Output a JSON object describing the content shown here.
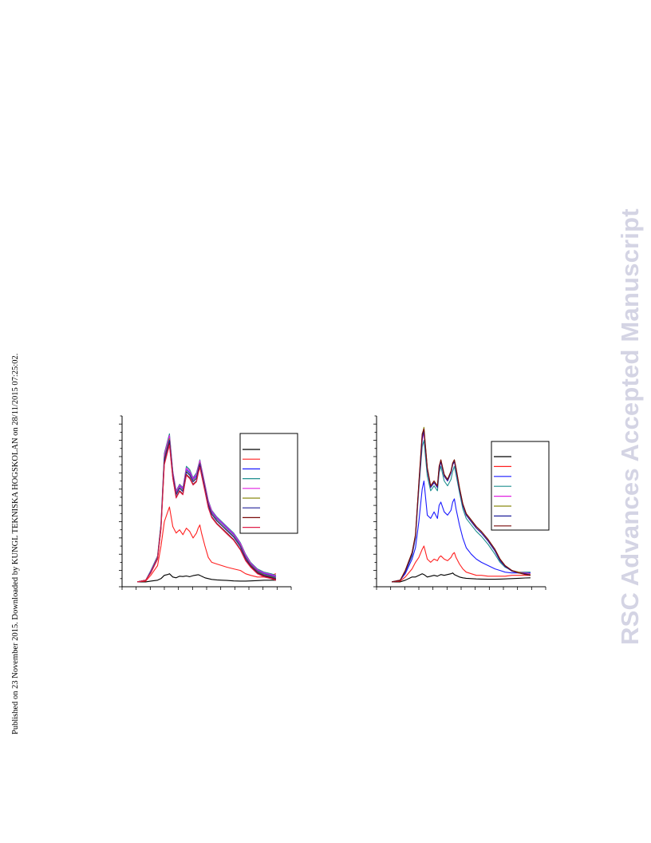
{
  "page": {
    "side_note": "Published on 23 November 2015. Downloaded by KUNGL TEKNISKA HOGSKOLAN on 28/11/2015 07:25:02.",
    "watermark": "RSC Advances Accepted Manuscript"
  },
  "colors": {
    "black": "#000000",
    "red": "#ff2020",
    "blue": "#1a1aff",
    "teal": "#1f8f8f",
    "magenta": "#e020e0",
    "olive": "#8a8a10",
    "navy": "#20209a",
    "darkred": "#7a0a0a",
    "crimson": "#e0204a"
  },
  "chart_data": [
    {
      "type": "line",
      "title": "",
      "xlabel": "",
      "ylabel": "",
      "xlim": [
        0,
        100
      ],
      "ylim": [
        0,
        105
      ],
      "x_ticks": 12,
      "y_ticks": 21,
      "legend_position": "top-right",
      "grid": false,
      "x": [
        9,
        14,
        17,
        21,
        23,
        25,
        27,
        28,
        30,
        32,
        34,
        36,
        37,
        38,
        40,
        42,
        44,
        45,
        46,
        47,
        49,
        51,
        53,
        56,
        59,
        62,
        66,
        70,
        73,
        76,
        80,
        84,
        88,
        91
      ],
      "series": [
        {
          "color": "#000000",
          "values": [
            3,
            3,
            3.5,
            4,
            5,
            7,
            7.5,
            8,
            6,
            5.5,
            6.5,
            6.3,
            6.5,
            6.6,
            6.2,
            6.8,
            7.2,
            7.4,
            7,
            6.5,
            5.5,
            5,
            4.5,
            4.2,
            4,
            3.9,
            3.6,
            3.5,
            3.5,
            3.6,
            3.8,
            4,
            4,
            4
          ]
        },
        {
          "color": "#ff2020",
          "values": [
            3,
            3.5,
            7,
            13,
            25,
            40,
            46,
            49,
            37,
            33,
            35,
            32,
            34,
            36,
            34,
            30,
            33,
            36,
            38,
            33,
            25,
            18,
            15,
            14,
            13,
            12,
            11,
            10,
            8,
            7,
            6,
            6,
            7,
            8
          ]
        },
        {
          "color": "#1a1aff",
          "values": [
            3,
            4,
            9,
            18,
            38,
            80,
            88,
            92,
            70,
            58,
            62,
            60,
            66,
            72,
            70,
            66,
            68,
            73,
            77,
            72,
            62,
            52,
            46,
            42,
            39,
            36,
            32,
            26,
            19,
            14,
            10,
            8,
            7,
            6
          ]
        },
        {
          "color": "#1f8f8f",
          "values": [
            3,
            4,
            10,
            19,
            39,
            82,
            90,
            94,
            71,
            59,
            63,
            61,
            67,
            74,
            72,
            67,
            70,
            74,
            78,
            73,
            63,
            53,
            47,
            43,
            40,
            37,
            33,
            27,
            20,
            15,
            11,
            9,
            8,
            7
          ]
        },
        {
          "color": "#e020e0",
          "values": [
            3,
            4,
            9.5,
            18.5,
            38,
            81,
            89,
            93,
            70.5,
            58.5,
            62.5,
            60.5,
            66.5,
            73,
            71,
            66.5,
            69,
            73.5,
            77.5,
            72.5,
            62.5,
            52.5,
            46.5,
            42.5,
            39.5,
            36.5,
            32.5,
            26.5,
            19.5,
            14.5,
            10.5,
            8.5,
            7.5,
            6.5
          ]
        },
        {
          "color": "#8a8a10",
          "values": [
            3,
            4,
            9,
            18,
            37,
            79,
            87,
            91,
            69,
            57,
            61,
            59,
            65,
            71,
            69,
            65,
            67,
            72,
            76,
            71,
            61,
            51,
            45,
            41,
            38,
            35,
            31,
            25,
            18,
            13.5,
            9.5,
            7.5,
            6.5,
            5.5
          ]
        },
        {
          "color": "#20209a",
          "values": [
            3,
            4,
            9,
            17.5,
            36.5,
            78,
            86,
            90,
            68.5,
            56.5,
            60.5,
            58.5,
            64.5,
            70.5,
            68.5,
            64.5,
            66.5,
            71.5,
            75.5,
            70.5,
            60.5,
            50.5,
            44.5,
            40.5,
            37.5,
            34.5,
            30.5,
            24.5,
            17.5,
            13,
            9,
            7,
            6,
            5
          ]
        },
        {
          "color": "#7a0a0a",
          "values": [
            3,
            4,
            8.5,
            17,
            36,
            76,
            84,
            88,
            67,
            55,
            59,
            57,
            63,
            69,
            67,
            63,
            65,
            70,
            74,
            69,
            59,
            49,
            43,
            39,
            36,
            33,
            29,
            23,
            16.5,
            12.5,
            8.5,
            6.5,
            5.5,
            4.5
          ]
        },
        {
          "color": "#e0204a",
          "values": [
            3,
            4,
            8.5,
            17,
            35.5,
            75,
            83,
            87,
            66.5,
            54.5,
            58.5,
            56.5,
            62.5,
            68.5,
            66.5,
            62.5,
            64.5,
            69.5,
            73.5,
            68.5,
            58.5,
            48.5,
            42.5,
            38.5,
            35.5,
            32.5,
            28.5,
            22.5,
            16,
            12,
            8,
            6,
            5,
            4
          ]
        }
      ]
    },
    {
      "type": "line",
      "title": "",
      "xlabel": "",
      "ylabel": "",
      "xlim": [
        0,
        100
      ],
      "ylim": [
        0,
        105
      ],
      "x_ticks": 12,
      "y_ticks": 21,
      "legend_position": "top-right",
      "grid": false,
      "x": [
        9,
        14,
        17,
        21,
        23,
        25,
        27,
        28,
        30,
        32,
        34,
        36,
        37,
        38,
        40,
        42,
        44,
        45,
        46,
        47,
        49,
        51,
        53,
        56,
        59,
        62,
        66,
        70,
        73,
        76,
        80,
        84,
        88,
        91
      ],
      "series": [
        {
          "color": "#000000",
          "values": [
            3,
            3,
            4,
            6,
            6,
            7,
            8,
            7.5,
            6,
            6.5,
            7,
            6.5,
            7,
            7.5,
            7,
            7.5,
            8,
            8.5,
            7.5,
            7,
            6,
            5.5,
            5.2,
            5,
            4.8,
            4.7,
            4.6,
            4.6,
            4.7,
            4.8,
            5,
            5.2,
            5.4,
            5.5
          ]
        },
        {
          "color": "#ff2020",
          "values": [
            3,
            3.5,
            6,
            11,
            15,
            18,
            23,
            25,
            17,
            15,
            17,
            16,
            18,
            19,
            17,
            16,
            18,
            20,
            21,
            18,
            14,
            11,
            9,
            8,
            7,
            7,
            6.5,
            6.5,
            6.5,
            6.5,
            7,
            7,
            7,
            7
          ]
        },
        {
          "color": "#1a1aff",
          "values": [
            3,
            4,
            8,
            17,
            24,
            40,
            60,
            65,
            44,
            42,
            46,
            42,
            50,
            52,
            46,
            44,
            47,
            52,
            54,
            48,
            38,
            30,
            24,
            20,
            17,
            15,
            13,
            11,
            10,
            9,
            8.5,
            8.5,
            8.5,
            8.5
          ]
        },
        {
          "color": "#1f8f8f",
          "values": [
            3,
            4,
            9,
            19,
            30,
            60,
            86,
            90,
            68,
            59,
            62,
            59,
            70,
            74,
            65,
            62,
            66,
            71,
            74,
            69,
            58,
            48,
            42,
            38,
            34,
            31,
            26,
            20,
            15,
            12,
            10,
            9,
            9,
            9
          ]
        },
        {
          "color": "#e020e0",
          "values": [
            3,
            4,
            9,
            20,
            31,
            62,
            90,
            95,
            72,
            61,
            64,
            61,
            72,
            77,
            68,
            65,
            70,
            75,
            77,
            72,
            60,
            50,
            44,
            40,
            36,
            33,
            28,
            22,
            16,
            12.5,
            10,
            9,
            8.5,
            8
          ]
        },
        {
          "color": "#8a8a10",
          "values": [
            3,
            4,
            10,
            21,
            32,
            63,
            93,
            98,
            73,
            62,
            65,
            62,
            73,
            78,
            69,
            66,
            71,
            76,
            78,
            73,
            61,
            51,
            45,
            41,
            37,
            34,
            29,
            23,
            17,
            13,
            10,
            9,
            8,
            7.5
          ]
        },
        {
          "color": "#20209a",
          "values": [
            3,
            4,
            9,
            20,
            31,
            62,
            91,
            96,
            72,
            61,
            64,
            61,
            72,
            77,
            68,
            65,
            70,
            75,
            77,
            72,
            60,
            50,
            44,
            40,
            36,
            33,
            28,
            22,
            16,
            12.5,
            9.5,
            8.5,
            8,
            7
          ]
        },
        {
          "color": "#7a0a0a",
          "values": [
            3,
            4,
            10,
            21,
            32,
            64,
            94,
            97,
            73,
            62,
            65,
            62,
            74,
            78,
            69,
            66,
            71,
            76,
            78,
            73,
            61,
            51,
            45,
            41,
            37,
            34,
            29,
            23,
            17,
            13,
            10,
            8.5,
            7.5,
            7
          ]
        }
      ]
    }
  ]
}
